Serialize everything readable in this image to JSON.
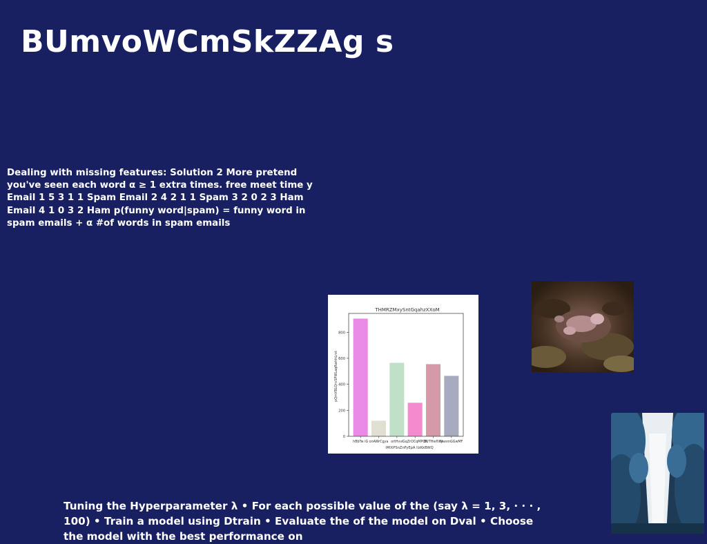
{
  "slide": {
    "title": "BUmvoWCmSkZZAg s",
    "paragraph_1": "Dealing with missing features: Solution 2 More pretend you've seen each word α ≥ 1 extra times. free meet time y Email 1 5 3 1 1 Spam Email 2 4 2 1 1 Spam 3 2 0 2 3 Ham Email 4 1 0 3 2 Ham p(funny word|spam) = funny word in spam emails + α #of words in spam emails",
    "paragraph_2": "Tuning the Hyperparameter λ • For each possible value of the (say λ = 1, 3, · · · , 100) • Train a model using Dtrain • Evaluate the of the model on Dval • Choose the model with the best performance on"
  },
  "chart_data": {
    "type": "bar",
    "title": "THMRZMxySntGqahzXXoM",
    "xlabel": "iMlXPSnZnFyEpA llzKkBWQ",
    "ylabel": "pQmYBLQrvSPWLaqRwhhLrxt",
    "categories": [
      "hBbTw iG",
      "onAWrCgya",
      "ortHvvi",
      "GqZrOCqMPOR",
      "DUTHiefliKy",
      "NwsmGGwMF"
    ],
    "values": [
      905,
      120,
      565,
      258,
      555,
      465
    ],
    "colors": [
      "#e98be6",
      "#e0dfd1",
      "#c0e1c8",
      "#f58bcf",
      "#d699a8",
      "#a8abc0"
    ],
    "yticks": [
      0,
      200,
      400,
      600,
      800
    ],
    "ylim": [
      0,
      945
    ],
    "grid": false
  },
  "images": {
    "rock": "rocky-coral-photo",
    "trees": "blue-forest-path-photo"
  }
}
